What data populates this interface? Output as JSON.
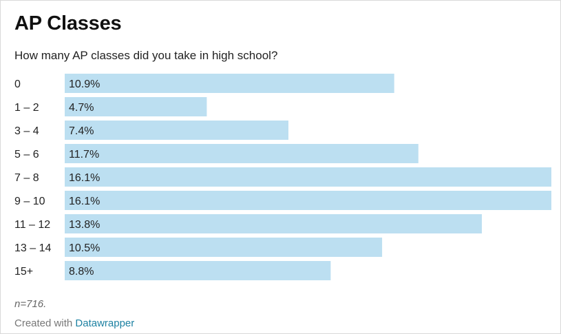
{
  "header": {
    "title": "AP Classes",
    "subtitle": "How many AP classes did you take in high school?"
  },
  "footer": {
    "note": "n=716.",
    "credit_prefix": "Created with",
    "credit_link": "Datawrapper"
  },
  "colors": {
    "bar": "#bcdff1",
    "text": "#222222"
  },
  "chart_data": {
    "type": "bar",
    "orientation": "horizontal",
    "categories": [
      "0",
      "1 – 2",
      "3 – 4",
      "5 – 6",
      "7 – 8",
      "9 – 10",
      "11 – 12",
      "13 – 14",
      "15+"
    ],
    "values": [
      10.9,
      4.7,
      7.4,
      11.7,
      16.1,
      16.1,
      13.8,
      10.5,
      8.8
    ],
    "labels": [
      "10.9%",
      "4.7%",
      "7.4%",
      "11.7%",
      "16.1%",
      "16.1%",
      "13.8%",
      "10.5%",
      "8.8%"
    ],
    "title": "AP Classes",
    "subtitle": "How many AP classes did you take in high school?",
    "xlim": [
      0,
      16.1
    ],
    "grid": false,
    "legend": "none"
  }
}
